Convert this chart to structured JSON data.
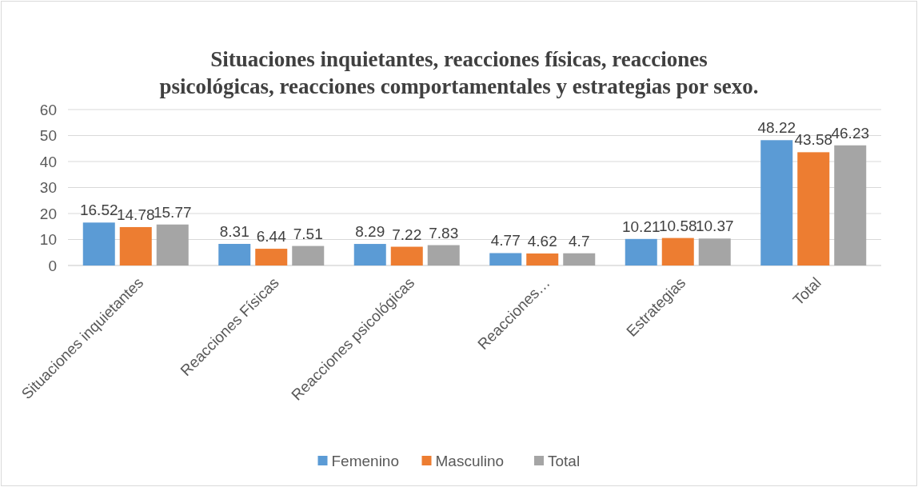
{
  "chart_data": {
    "type": "bar",
    "title": "Situaciones inquietantes, reacciones físicas, reacciones psicológicas, reacciones comportamentales y estrategias por sexo.",
    "categories": [
      "Situaciones inquietantes",
      "Reacciones Físicas",
      "Reacciones psicológicas",
      "Reacciones…",
      "Estrategias",
      "Total"
    ],
    "series": [
      {
        "name": "Femenino",
        "color": "#5b9bd5",
        "values": [
          16.52,
          8.31,
          8.29,
          4.77,
          10.21,
          48.22
        ]
      },
      {
        "name": "Masculino",
        "color": "#ed7d31",
        "values": [
          14.78,
          6.44,
          7.22,
          4.62,
          10.58,
          43.58
        ]
      },
      {
        "name": "Total",
        "color": "#a5a5a5",
        "values": [
          15.77,
          7.51,
          7.83,
          4.7,
          10.37,
          46.23
        ]
      }
    ],
    "ylim": [
      0,
      60
    ],
    "yticks": [
      0,
      10,
      20,
      30,
      40,
      50,
      60
    ],
    "grid": "y",
    "legend": "bottom",
    "data_labels": true
  }
}
